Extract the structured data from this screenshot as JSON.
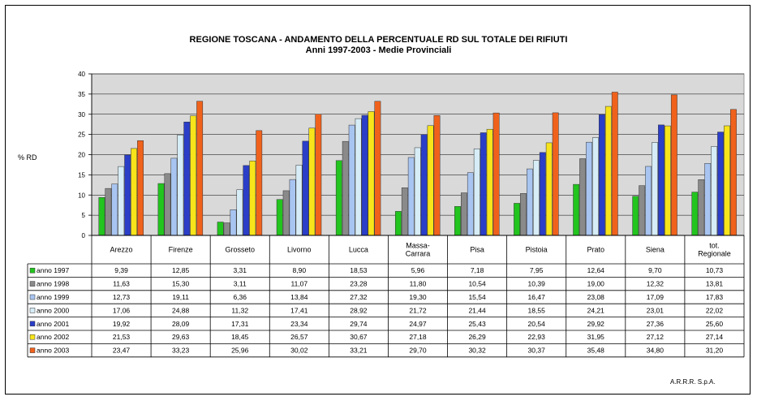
{
  "chart_data": {
    "type": "bar",
    "title": "REGIONE TOSCANA - ANDAMENTO DELLA PERCENTUALE RD SUL TOTALE DEI RIFIUTI",
    "subtitle": "Anni 1997-2003 - Medie Provinciali",
    "ylabel": "% RD",
    "ylim": [
      0,
      40
    ],
    "yticks": [
      0,
      5,
      10,
      15,
      20,
      25,
      30,
      35,
      40
    ],
    "grid": true,
    "legend": "data table, left",
    "categories": [
      "Arezzo",
      "Firenze",
      "Grosseto",
      "Livorno",
      "Lucca",
      "Massa-Carrara",
      "Pisa",
      "Pistoia",
      "Prato",
      "Siena",
      "tot. Regionale"
    ],
    "category_lines": [
      [
        "Arezzo"
      ],
      [
        "Firenze"
      ],
      [
        "Grosseto"
      ],
      [
        "Livorno"
      ],
      [
        "Lucca"
      ],
      [
        "Massa-",
        "Carrara"
      ],
      [
        "Pisa"
      ],
      [
        "Pistoia"
      ],
      [
        "Prato"
      ],
      [
        "Siena"
      ],
      [
        "tot.",
        "Regionale"
      ]
    ],
    "series": [
      {
        "name": "anno 1997",
        "color": "#22c41e",
        "values": [
          9.39,
          12.85,
          3.31,
          8.9,
          18.53,
          5.96,
          7.18,
          7.95,
          12.64,
          9.7,
          10.73
        ],
        "labels": [
          "9,39",
          "12,85",
          "3,31",
          "8,90",
          "18,53",
          "5,96",
          "7,18",
          "7,95",
          "12,64",
          "9,70",
          "10,73"
        ]
      },
      {
        "name": "anno 1998",
        "color": "#8a8a8a",
        "values": [
          11.63,
          15.3,
          3.11,
          11.07,
          23.28,
          11.8,
          10.54,
          10.39,
          19.0,
          12.32,
          13.81
        ],
        "labels": [
          "11,63",
          "15,30",
          "3,11",
          "11,07",
          "23,28",
          "11,80",
          "10,54",
          "10,39",
          "19,00",
          "12,32",
          "13,81"
        ]
      },
      {
        "name": "anno 1999",
        "color": "#a8c4f0",
        "values": [
          12.73,
          19.11,
          6.36,
          13.84,
          27.32,
          19.3,
          15.54,
          16.47,
          23.08,
          17.09,
          17.83
        ],
        "labels": [
          "12,73",
          "19,11",
          "6,36",
          "13,84",
          "27,32",
          "19,30",
          "15,54",
          "16,47",
          "23,08",
          "17,09",
          "17,83"
        ]
      },
      {
        "name": "anno 2000",
        "color": "#d6ecf6",
        "values": [
          17.06,
          24.88,
          11.32,
          17.41,
          28.92,
          21.72,
          21.44,
          18.55,
          24.21,
          23.01,
          22.02
        ],
        "labels": [
          "17,06",
          "24,88",
          "11,32",
          "17,41",
          "28,92",
          "21,72",
          "21,44",
          "18,55",
          "24,21",
          "23,01",
          "22,02"
        ]
      },
      {
        "name": "anno 2001",
        "color": "#2a3ec8",
        "values": [
          19.92,
          28.09,
          17.31,
          23.34,
          29.74,
          24.97,
          25.43,
          20.54,
          29.92,
          27.36,
          25.6
        ],
        "labels": [
          "19,92",
          "28,09",
          "17,31",
          "23,34",
          "29,74",
          "24,97",
          "25,43",
          "20,54",
          "29,92",
          "27,36",
          "25,60"
        ]
      },
      {
        "name": "anno 2002",
        "color": "#f7e41a",
        "values": [
          21.53,
          29.63,
          18.45,
          26.57,
          30.67,
          27.18,
          26.29,
          22.93,
          31.95,
          27.12,
          27.14
        ],
        "labels": [
          "21,53",
          "29,63",
          "18,45",
          "26,57",
          "30,67",
          "27,18",
          "26,29",
          "22,93",
          "31,95",
          "27,12",
          "27,14"
        ]
      },
      {
        "name": "anno 2003",
        "color": "#f0621c",
        "values": [
          23.47,
          33.23,
          25.96,
          30.02,
          33.21,
          29.7,
          30.32,
          30.37,
          35.48,
          34.8,
          31.2
        ],
        "labels": [
          "23,47",
          "33,23",
          "25,96",
          "30,02",
          "33,21",
          "29,70",
          "30,32",
          "30,37",
          "35,48",
          "34,80",
          "31,20"
        ]
      }
    ]
  },
  "footer": {
    "credit": "A.R.R.R. S.p.A."
  }
}
